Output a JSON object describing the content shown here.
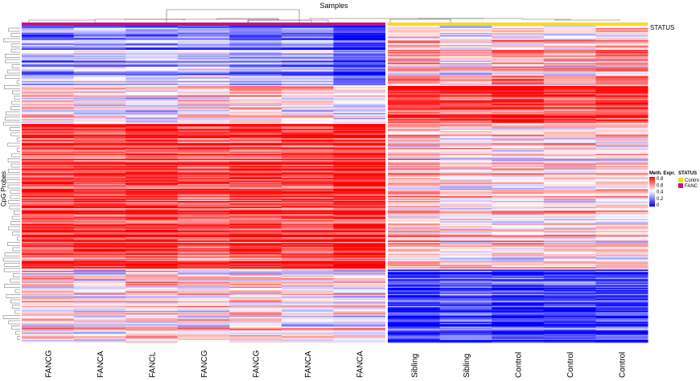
{
  "chart_data": {
    "type": "heatmap",
    "title": "Samples",
    "ylabel": "CpG Probes",
    "columns": [
      "FANCG",
      "FANCA",
      "FANCL",
      "FANCG",
      "FANCG",
      "FANCA",
      "FANCA",
      "Sibling",
      "Sibling",
      "Control",
      "Control",
      "Control"
    ],
    "status": [
      "FANC",
      "FANC",
      "FANC",
      "FANC",
      "FANC",
      "FANC",
      "FANC",
      "Control",
      "Control",
      "Control",
      "Control",
      "Control"
    ],
    "status_label": "STATUS",
    "row_clusters": [
      {
        "share": 0.19,
        "values": [
          0.25,
          0.3,
          0.28,
          0.3,
          0.22,
          0.25,
          0.1,
          0.55,
          0.45,
          0.55,
          0.5,
          0.55
        ]
      },
      {
        "share": 0.12,
        "values": [
          0.5,
          0.45,
          0.42,
          0.5,
          0.55,
          0.5,
          0.42,
          0.75,
          0.75,
          0.8,
          0.75,
          0.78
        ]
      },
      {
        "share": 0.46,
        "values": [
          0.75,
          0.75,
          0.78,
          0.72,
          0.75,
          0.75,
          0.8,
          0.55,
          0.5,
          0.5,
          0.5,
          0.5
        ]
      },
      {
        "share": 0.23,
        "values": [
          0.5,
          0.45,
          0.5,
          0.5,
          0.5,
          0.45,
          0.45,
          0.1,
          0.15,
          0.1,
          0.1,
          0.12
        ]
      }
    ],
    "color_scale": {
      "title": "Meth. Expr.",
      "ticks": [
        0.8,
        0.6,
        0.4,
        0.2,
        0
      ],
      "low": "#0000ff",
      "mid": "#ffffff",
      "high": "#ff0000",
      "range": [
        0,
        0.85
      ]
    },
    "legend": {
      "title": "STATUS",
      "entries": [
        {
          "label": "Contro",
          "color": "#f5dc1e"
        },
        {
          "label": "FANC",
          "color": "#c8108c"
        }
      ],
      "placement": "right"
    }
  }
}
